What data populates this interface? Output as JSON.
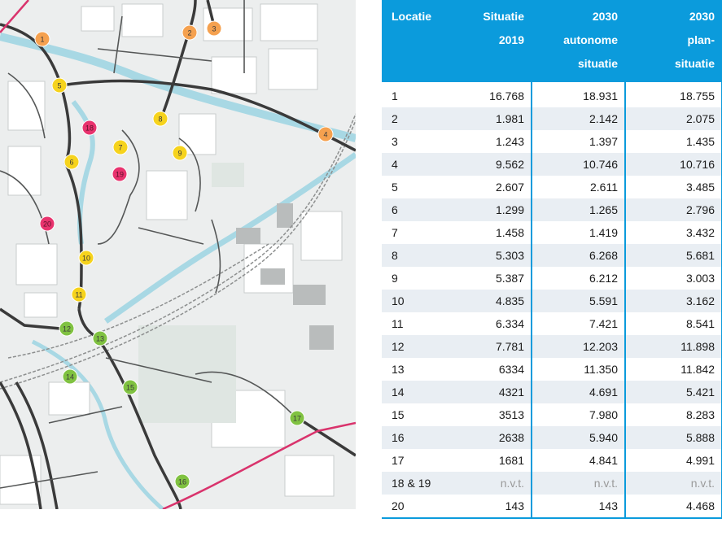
{
  "table": {
    "headers": [
      "Locatie",
      "Situatie 2019",
      "2030 autonome situatie",
      "2030 plan-situatie"
    ],
    "header_lines": [
      [
        "Locatie"
      ],
      [
        "Situatie",
        "2019"
      ],
      [
        "2030",
        "autonome",
        "situatie"
      ],
      [
        "2030",
        "plan-",
        "situatie"
      ]
    ],
    "rows": [
      [
        "1",
        "16.768",
        "18.931",
        "18.755"
      ],
      [
        "2",
        "1.981",
        "2.142",
        "2.075"
      ],
      [
        "3",
        "1.243",
        "1.397",
        "1.435"
      ],
      [
        "4",
        "9.562",
        "10.746",
        "10.716"
      ],
      [
        "5",
        "2.607",
        "2.611",
        "3.485"
      ],
      [
        "6",
        "1.299",
        "1.265",
        "2.796"
      ],
      [
        "7",
        "1.458",
        "1.419",
        "3.432"
      ],
      [
        "8",
        "5.303",
        "6.268",
        "5.681"
      ],
      [
        "9",
        "5.387",
        "6.212",
        "3.003"
      ],
      [
        "10",
        "4.835",
        "5.591",
        "3.162"
      ],
      [
        "11",
        "6.334",
        "7.421",
        "8.541"
      ],
      [
        "12",
        "7.781",
        "12.203",
        "11.898"
      ],
      [
        "13",
        "6334",
        "11.350",
        "11.842"
      ],
      [
        "14",
        "4321",
        "4.691",
        "5.421"
      ],
      [
        "15",
        "3513",
        "7.980",
        "8.283"
      ],
      [
        "16",
        "2638",
        "5.940",
        "5.888"
      ],
      [
        "17",
        "1681",
        "4.841",
        "4.991"
      ],
      [
        "18 & 19",
        "n.v.t.",
        "n.v.t.",
        "n.v.t."
      ],
      [
        "20",
        "143",
        "143",
        "4.468"
      ]
    ],
    "header_color": "#0b9bdc",
    "stripe_color": "#e9eef3",
    "na_color": "#9a9a9a"
  },
  "map": {
    "marker_colors": {
      "orange": "#f5a14f",
      "yellow": "#f6d31d",
      "pink": "#e8336e",
      "green": "#80c241"
    },
    "markers": [
      {
        "label": "1",
        "color": "orange"
      },
      {
        "label": "2",
        "color": "orange"
      },
      {
        "label": "3",
        "color": "orange"
      },
      {
        "label": "4",
        "color": "orange"
      },
      {
        "label": "5",
        "color": "yellow"
      },
      {
        "label": "6",
        "color": "yellow"
      },
      {
        "label": "7",
        "color": "yellow"
      },
      {
        "label": "8",
        "color": "yellow"
      },
      {
        "label": "9",
        "color": "yellow"
      },
      {
        "label": "10",
        "color": "yellow"
      },
      {
        "label": "11",
        "color": "yellow"
      },
      {
        "label": "12",
        "color": "green"
      },
      {
        "label": "13",
        "color": "green"
      },
      {
        "label": "14",
        "color": "green"
      },
      {
        "label": "15",
        "color": "green"
      },
      {
        "label": "16",
        "color": "green"
      },
      {
        "label": "17",
        "color": "green"
      },
      {
        "label": "18",
        "color": "pink"
      },
      {
        "label": "19",
        "color": "pink"
      },
      {
        "label": "20",
        "color": "pink"
      }
    ]
  }
}
